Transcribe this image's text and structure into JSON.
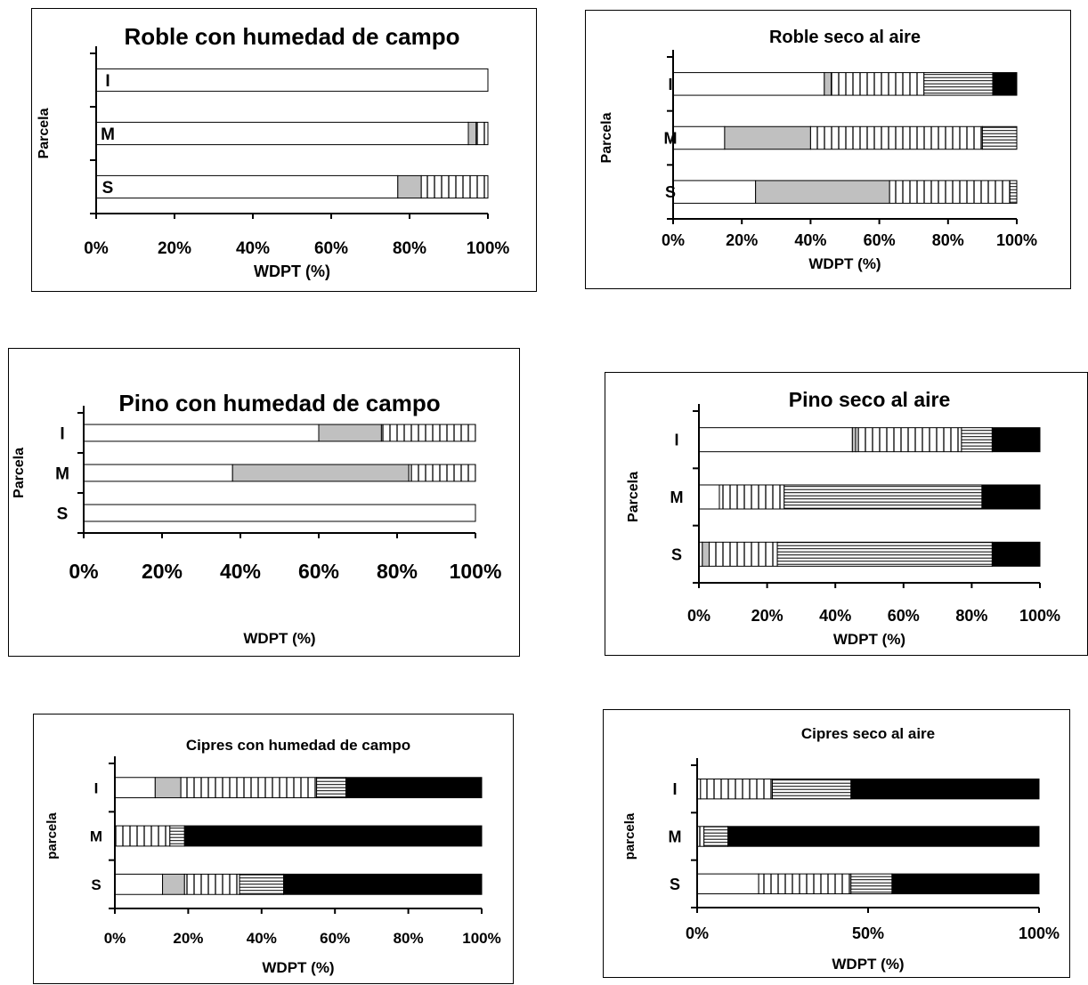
{
  "chart_data": [
    {
      "type": "bar",
      "orientation": "horizontal",
      "stacked": "percent",
      "title": "Roble con humedad de campo",
      "xlabel": "WDPT (%)",
      "ylabel": "Parcela",
      "categories": [
        "I",
        "M",
        "S"
      ],
      "xticks": [
        "0%",
        "20%",
        "40%",
        "60%",
        "80%",
        "100%"
      ],
      "xlim": [
        0,
        100
      ],
      "series": [
        {
          "values": [
            100,
            95,
            77
          ]
        },
        {
          "values": [
            0,
            2,
            6
          ]
        },
        {
          "values": [
            0,
            3,
            17
          ]
        },
        {
          "values": [
            0,
            0,
            0
          ]
        },
        {
          "values": [
            0,
            0,
            0
          ]
        }
      ]
    },
    {
      "type": "bar",
      "orientation": "horizontal",
      "stacked": "percent",
      "title": "Roble seco al aire",
      "xlabel": "WDPT (%)",
      "ylabel": "Parcela",
      "categories": [
        "I",
        "M",
        "S"
      ],
      "xticks": [
        "0%",
        "20%",
        "40%",
        "60%",
        "80%",
        "100%"
      ],
      "xlim": [
        0,
        100
      ],
      "series": [
        {
          "values": [
            44,
            15,
            24
          ]
        },
        {
          "values": [
            2,
            25,
            39
          ]
        },
        {
          "values": [
            27,
            50,
            35
          ]
        },
        {
          "values": [
            20,
            10,
            2
          ]
        },
        {
          "values": [
            7,
            0,
            0
          ]
        }
      ]
    },
    {
      "type": "bar",
      "orientation": "horizontal",
      "stacked": "percent",
      "title": "Pino con humedad de campo",
      "xlabel": "WDPT (%)",
      "ylabel": "Parcela",
      "categories": [
        "I",
        "M",
        "S"
      ],
      "xticks": [
        "0%",
        "20%",
        "40%",
        "60%",
        "80%",
        "100%"
      ],
      "xlim": [
        0,
        100
      ],
      "series": [
        {
          "values": [
            60,
            38,
            100
          ]
        },
        {
          "values": [
            16,
            45,
            0
          ]
        },
        {
          "values": [
            24,
            17,
            0
          ]
        },
        {
          "values": [
            0,
            0,
            0
          ]
        },
        {
          "values": [
            0,
            0,
            0
          ]
        }
      ]
    },
    {
      "type": "bar",
      "orientation": "horizontal",
      "stacked": "percent",
      "title": "Pino seco al aire",
      "xlabel": "WDPT (%)",
      "ylabel": "Parcela",
      "categories": [
        "I",
        "M",
        "S"
      ],
      "xticks": [
        "0%",
        "20%",
        "40%",
        "60%",
        "80%",
        "100%"
      ],
      "xlim": [
        0,
        100
      ],
      "series": [
        {
          "values": [
            45,
            6,
            1
          ]
        },
        {
          "values": [
            1,
            0,
            2
          ]
        },
        {
          "values": [
            31,
            19,
            20
          ]
        },
        {
          "values": [
            9,
            58,
            63
          ]
        },
        {
          "values": [
            14,
            17,
            14
          ]
        }
      ]
    },
    {
      "type": "bar",
      "orientation": "horizontal",
      "stacked": "percent",
      "title": "Cipres con humedad de campo",
      "xlabel": "WDPT (%)",
      "ylabel": "parcela",
      "categories": [
        "I",
        "M",
        "S"
      ],
      "xticks": [
        "0%",
        "20%",
        "40%",
        "60%",
        "80%",
        "100%"
      ],
      "xlim": [
        0,
        100
      ],
      "series": [
        {
          "values": [
            11,
            0,
            13
          ]
        },
        {
          "values": [
            7,
            0,
            6
          ]
        },
        {
          "values": [
            37,
            15,
            15
          ]
        },
        {
          "values": [
            8,
            4,
            12
          ]
        },
        {
          "values": [
            37,
            81,
            54
          ]
        }
      ]
    },
    {
      "type": "bar",
      "orientation": "horizontal",
      "stacked": "percent",
      "title": "Cipres seco al aire",
      "xlabel": "WDPT (%)",
      "ylabel": "parcela",
      "categories": [
        "I",
        "M",
        "S"
      ],
      "xticks": [
        "0%",
        "50%",
        "100%"
      ],
      "xlim": [
        0,
        100
      ],
      "series": [
        {
          "values": [
            1,
            0,
            18
          ]
        },
        {
          "values": [
            0,
            0,
            0
          ]
        },
        {
          "values": [
            21,
            2,
            27
          ]
        },
        {
          "values": [
            23,
            7,
            12
          ]
        },
        {
          "values": [
            55,
            91,
            43
          ]
        }
      ]
    }
  ],
  "series_style": [
    {
      "pattern": "blank",
      "fill": "#ffffff"
    },
    {
      "pattern": "solid",
      "fill": "#c0c0c0"
    },
    {
      "pattern": "vertical-lines",
      "fill": "#ffffff"
    },
    {
      "pattern": "horizontal-lines",
      "fill": "#ffffff"
    },
    {
      "pattern": "solid",
      "fill": "#000000"
    }
  ]
}
